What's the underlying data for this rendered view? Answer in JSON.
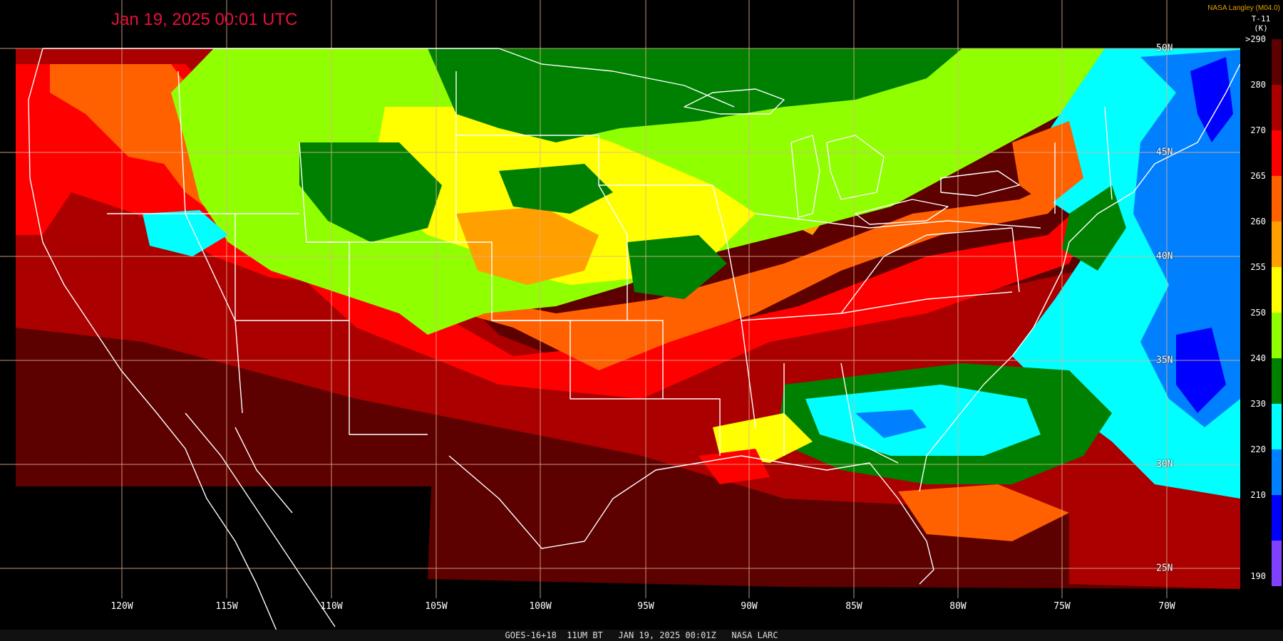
{
  "timestamp": "Jan 19, 2025 00:01 UTC",
  "credit": "NASA Langley (M04.0)",
  "colorbar": {
    "title_line1": "T-11",
    "title_line2": "(K)",
    "labels": [
      ">290",
      "280",
      "270",
      "265",
      "260",
      "255",
      "250",
      "240",
      "230",
      "220",
      "210",
      "190"
    ],
    "colors": [
      "#5c0000",
      "#aa0000",
      "#ff0000",
      "#ff6000",
      "#ffa000",
      "#ffff00",
      "#90ff00",
      "#008000",
      "#00ffff",
      "#0080ff",
      "#0000ff",
      "#8040ff"
    ]
  },
  "lon_labels": [
    "120W",
    "115W",
    "110W",
    "105W",
    "100W",
    "95W",
    "90W",
    "85W",
    "80W",
    "75W",
    "70W"
  ],
  "lat_labels": [
    "50N",
    "45N",
    "40N",
    "35N",
    "30N",
    "25N"
  ],
  "footer": "GOES-16+18  11UM BT   JAN 19, 2025 00:01Z   NASA LARC"
}
